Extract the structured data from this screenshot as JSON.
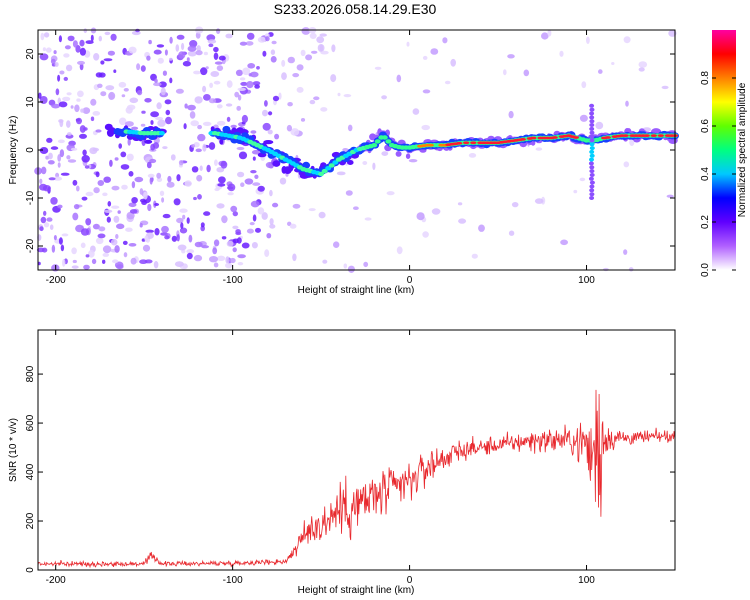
{
  "title": "S233.2026.058.14.29.E30",
  "chart_data": [
    {
      "type": "heatmap",
      "name": "spectrogram",
      "xlabel": "Height of straight line (km)",
      "ylabel": "Frequency (Hz)",
      "xlim": [
        -210,
        150
      ],
      "ylim": [
        -25,
        25
      ],
      "xticks": [
        -200,
        -100,
        0,
        100
      ],
      "yticks": [
        -20,
        -10,
        0,
        10,
        20
      ],
      "xtick_labels": [
        "-200",
        "-100",
        "0",
        "100"
      ],
      "ytick_labels": [
        "-20",
        "-10",
        "0",
        "10",
        "20"
      ],
      "colorbar": {
        "label": "Normalized spectral amplitude",
        "range": [
          0,
          1
        ],
        "ticks": [
          0,
          0.2,
          0.4,
          0.6,
          0.8
        ],
        "tick_labels": [
          "0.0",
          "0.2",
          "0.4",
          "0.6",
          "0.8"
        ],
        "colors": [
          "#ffffff",
          "#b060ff",
          "#6000ff",
          "#0000ff",
          "#00c8ff",
          "#00ff80",
          "#60ff00",
          "#ffff00",
          "#ff8000",
          "#ff0000",
          "#ff00a0"
        ]
      },
      "ridge": {
        "x": [
          -165,
          -150,
          -110,
          -95,
          -80,
          -70,
          -60,
          -50,
          -40,
          -30,
          -20,
          -15,
          -10,
          -5,
          0,
          10,
          20,
          30,
          40,
          50,
          60,
          70,
          80,
          90,
          95,
          100,
          105,
          110,
          120,
          130,
          140,
          150
        ],
        "y": [
          4,
          3.5,
          3.5,
          2.5,
          0,
          -2,
          -4,
          -5,
          -2,
          0,
          1,
          3,
          1,
          0.5,
          0.5,
          1,
          1,
          1.5,
          1.5,
          1.5,
          2,
          2.5,
          2.5,
          3,
          2.5,
          2,
          2,
          2.5,
          3,
          3,
          3,
          3
        ]
      }
    },
    {
      "type": "line",
      "name": "snr",
      "xlabel": "Height of straight line (km)",
      "ylabel": "SNR (10 * v/v)",
      "xlim": [
        -210,
        150
      ],
      "ylim": [
        0,
        980
      ],
      "xticks": [
        -200,
        -100,
        0,
        100
      ],
      "yticks": [
        0,
        200,
        400,
        600,
        800
      ],
      "xtick_labels": [
        "-200",
        "-100",
        "0",
        "100"
      ],
      "ytick_labels": [
        "0",
        "200",
        "400",
        "600",
        "800"
      ],
      "color": "#e8282d",
      "envelope": {
        "x": [
          -210,
          -150,
          -145,
          -140,
          -100,
          -70,
          -55,
          -50,
          -40,
          -30,
          -20,
          -10,
          0,
          10,
          20,
          30,
          40,
          50,
          60,
          70,
          80,
          90,
          100,
          102,
          105,
          108,
          110,
          120,
          130,
          140,
          150
        ],
        "mean": [
          25,
          25,
          60,
          25,
          28,
          35,
          180,
          180,
          250,
          260,
          300,
          330,
          360,
          420,
          460,
          490,
          500,
          510,
          520,
          530,
          530,
          530,
          520,
          450,
          500,
          500,
          540,
          540,
          540,
          545,
          545
        ],
        "amp": [
          12,
          12,
          30,
          12,
          12,
          15,
          90,
          110,
          140,
          150,
          140,
          110,
          100,
          90,
          70,
          50,
          45,
          45,
          50,
          55,
          60,
          70,
          120,
          200,
          350,
          420,
          90,
          40,
          35,
          30,
          30
        ]
      }
    }
  ]
}
